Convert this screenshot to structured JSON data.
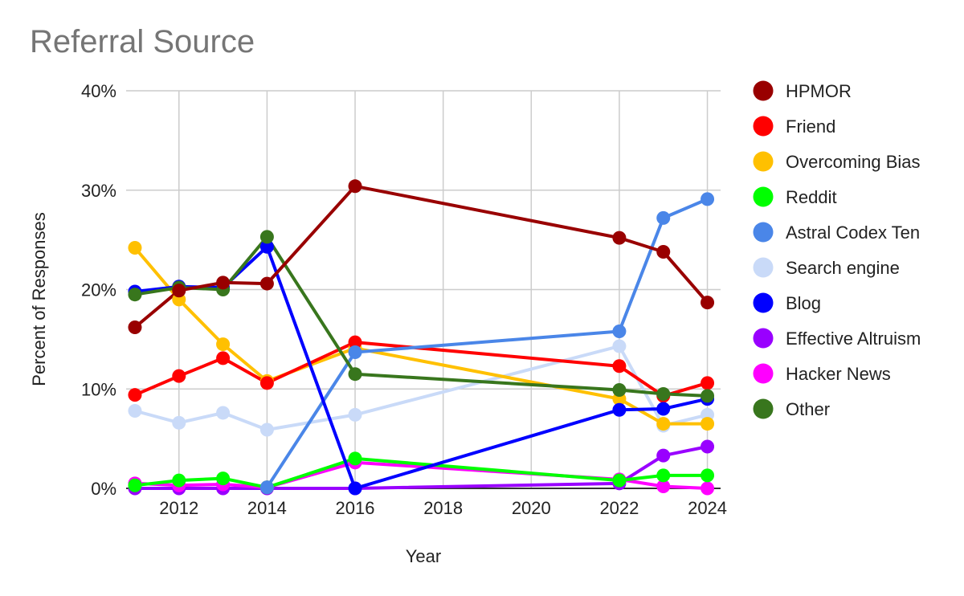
{
  "chart_data": {
    "type": "line",
    "title": "Referral Source",
    "xlabel": "Year",
    "ylabel": "Percent of Responses",
    "xlim": [
      2010.8,
      2024.3
    ],
    "ylim": [
      0,
      40
    ],
    "x_ticks": [
      2012,
      2014,
      2016,
      2018,
      2020,
      2022,
      2024
    ],
    "x_tick_labels": [
      "2012",
      "2014",
      "2016",
      "2018",
      "2020",
      "2022",
      "2024"
    ],
    "y_ticks": [
      0,
      10,
      20,
      30,
      40
    ],
    "y_tick_labels": [
      "0%",
      "10%",
      "20%",
      "30%",
      "40%"
    ],
    "grid": true,
    "legend_position": "right",
    "x": [
      2011,
      2012,
      2013,
      2014,
      2016,
      2022,
      2023,
      2024
    ],
    "series": [
      {
        "name": "Effective Altruism",
        "color": "#9900ff",
        "values": [
          0,
          0,
          0,
          0,
          0,
          0.5,
          3.3,
          4.2
        ]
      },
      {
        "name": "Hacker News",
        "color": "#ff00ff",
        "values": [
          0.5,
          0.3,
          0.4,
          0.1,
          2.6,
          0.9,
          0.2,
          0
        ]
      },
      {
        "name": "Reddit",
        "color": "#00ff00",
        "values": [
          0.3,
          0.8,
          1.0,
          0.1,
          3.0,
          0.8,
          1.3,
          1.3
        ]
      },
      {
        "name": "Search engine",
        "color": "#c9daf8",
        "values": [
          7.8,
          6.6,
          7.6,
          5.9,
          7.4,
          14.3,
          6.3,
          7.4
        ]
      },
      {
        "name": "Overcoming Bias",
        "color": "#ffc000",
        "values": [
          24.2,
          19.0,
          14.5,
          10.8,
          14.1,
          9.0,
          6.5,
          6.5
        ]
      },
      {
        "name": "Friend",
        "color": "#ff0000",
        "values": [
          9.4,
          11.3,
          13.1,
          10.6,
          14.7,
          12.3,
          9.3,
          10.6
        ]
      },
      {
        "name": "Astral Codex Ten",
        "color": "#4a86e8",
        "values": [
          null,
          null,
          null,
          0.1,
          13.7,
          15.8,
          27.2,
          29.1
        ]
      },
      {
        "name": "Blog",
        "color": "#0000ff",
        "values": [
          19.8,
          20.3,
          20.2,
          24.3,
          0,
          7.9,
          8.0,
          9.0
        ]
      },
      {
        "name": "Other",
        "color": "#38761d",
        "values": [
          19.5,
          20.2,
          20.0,
          25.3,
          11.5,
          9.9,
          9.5,
          9.3
        ]
      },
      {
        "name": "HPMOR",
        "color": "#990000",
        "values": [
          16.2,
          19.9,
          20.7,
          20.6,
          30.4,
          25.2,
          23.8,
          18.7
        ]
      }
    ],
    "legend_order": [
      "HPMOR",
      "Friend",
      "Overcoming Bias",
      "Reddit",
      "Astral Codex Ten",
      "Search engine",
      "Blog",
      "Effective Altruism",
      "Hacker News",
      "Other"
    ]
  }
}
